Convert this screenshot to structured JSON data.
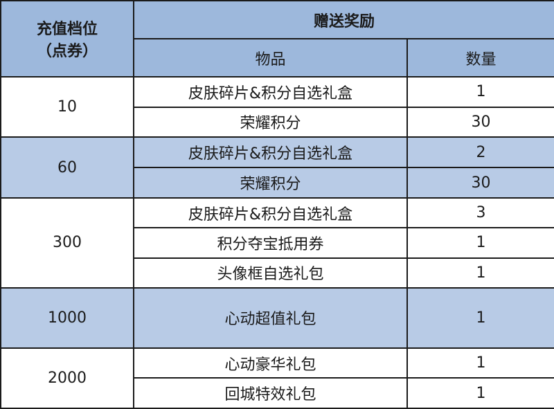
{
  "headers": {
    "tier": "充值档位\n（点券）",
    "tier_line1": "充值档位",
    "tier_line2": "（点券）",
    "rewards": "赠送奖励",
    "item": "物品",
    "qty": "数量"
  },
  "colors": {
    "header_bg": "#9db8dc",
    "band_bg": "#b8cbe6",
    "border": "#1a1a1a"
  },
  "tiers": [
    {
      "amount": "10",
      "items": [
        {
          "name": "皮肤碎片&积分自选礼盒",
          "qty": "1"
        },
        {
          "name": "荣耀积分",
          "qty": "30"
        }
      ]
    },
    {
      "amount": "60",
      "items": [
        {
          "name": "皮肤碎片&积分自选礼盒",
          "qty": "2"
        },
        {
          "name": "荣耀积分",
          "qty": "30"
        }
      ]
    },
    {
      "amount": "300",
      "items": [
        {
          "name": "皮肤碎片&积分自选礼盒",
          "qty": "3"
        },
        {
          "name": "积分夺宝抵用券",
          "qty": "1"
        },
        {
          "name": "头像框自选礼包",
          "qty": "1"
        }
      ]
    },
    {
      "amount": "1000",
      "items": [
        {
          "name": "心动超值礼包",
          "qty": "1"
        }
      ]
    },
    {
      "amount": "2000",
      "items": [
        {
          "name": "心动豪华礼包",
          "qty": "1"
        },
        {
          "name": "回城特效礼包",
          "qty": "1"
        }
      ]
    }
  ]
}
